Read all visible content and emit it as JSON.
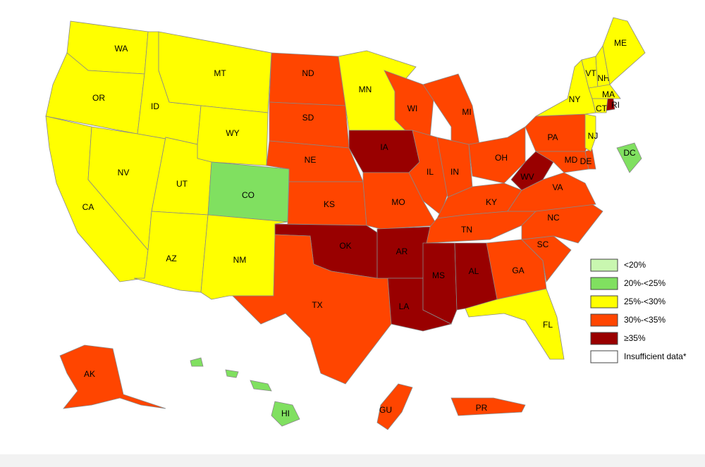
{
  "states": [
    {
      "label": "WA",
      "color": "#ffff00"
    },
    {
      "label": "OR",
      "color": "#ffff00"
    },
    {
      "label": "CA",
      "color": "#ffff00"
    },
    {
      "label": "ID",
      "color": "#ffff00"
    },
    {
      "label": "NV",
      "color": "#ffff00"
    },
    {
      "label": "MT",
      "color": "#ffff00"
    },
    {
      "label": "WY",
      "color": "#ffff00"
    },
    {
      "label": "UT",
      "color": "#ffff00"
    },
    {
      "label": "AZ",
      "color": "#ffff00"
    },
    {
      "label": "CO",
      "color": "#80e060"
    },
    {
      "label": "NM",
      "color": "#ffff00"
    },
    {
      "label": "ND",
      "color": "#ff4500"
    },
    {
      "label": "SD",
      "color": "#ff4500"
    },
    {
      "label": "NE",
      "color": "#ff4500"
    },
    {
      "label": "KS",
      "color": "#ff4500"
    },
    {
      "label": "OK",
      "color": "#990000"
    },
    {
      "label": "TX",
      "color": "#ff4500"
    },
    {
      "label": "MN",
      "color": "#ffff00"
    },
    {
      "label": "IA",
      "color": "#990000"
    },
    {
      "label": "MO",
      "color": "#ff4500"
    },
    {
      "label": "AR",
      "color": "#990000"
    },
    {
      "label": "LA",
      "color": "#990000"
    },
    {
      "label": "MS",
      "color": "#990000"
    },
    {
      "label": "AL",
      "color": "#990000"
    },
    {
      "label": "WI",
      "color": "#ff4500"
    },
    {
      "label": "IL",
      "color": "#ff4500"
    },
    {
      "label": "MI",
      "color": "#ff4500"
    },
    {
      "label": "IN",
      "color": "#ff4500"
    },
    {
      "label": "OH",
      "color": "#ff4500"
    },
    {
      "label": "KY",
      "color": "#ff4500"
    },
    {
      "label": "TN",
      "color": "#ff4500"
    },
    {
      "label": "GA",
      "color": "#ff4500"
    },
    {
      "label": "FL",
      "color": "#ffff00"
    },
    {
      "label": "SC",
      "color": "#ff4500"
    },
    {
      "label": "NC",
      "color": "#ff4500"
    },
    {
      "label": "VA",
      "color": "#ff4500"
    },
    {
      "label": "WV",
      "color": "#990000"
    },
    {
      "label": "PA",
      "color": "#ff4500"
    },
    {
      "label": "MD",
      "color": "#ff4500"
    },
    {
      "label": "DE",
      "color": "#ff4500"
    },
    {
      "label": "NJ",
      "color": "#ffff00"
    },
    {
      "label": "NY",
      "color": "#ffff00"
    },
    {
      "label": "VT",
      "color": "#ffff00"
    },
    {
      "label": "NH",
      "color": "#ffff00"
    },
    {
      "label": "ME",
      "color": "#ffff00"
    },
    {
      "label": "MA",
      "color": "#ffff00"
    },
    {
      "label": "CT",
      "color": "#ffff00"
    },
    {
      "label": "RI",
      "color": "#990000"
    },
    {
      "label": "DC",
      "color": "#80e060"
    },
    {
      "label": "AK",
      "color": "#ff4500"
    },
    {
      "label": "HI",
      "color": "#80e060"
    },
    {
      "label": "GU",
      "color": "#ff4500"
    },
    {
      "label": "PR",
      "color": "#ff4500"
    }
  ],
  "legend": [
    {
      "label": "<20%",
      "color": "#c9f7b0"
    },
    {
      "label": "20%-<25%",
      "color": "#80e060"
    },
    {
      "label": "25%-<30%",
      "color": "#ffff00"
    },
    {
      "label": "30%-<35%",
      "color": "#ff4500"
    },
    {
      "label": "≥35%",
      "color": "#990000"
    },
    {
      "label": "Insufficient data*",
      "color": "#ffffff"
    }
  ]
}
